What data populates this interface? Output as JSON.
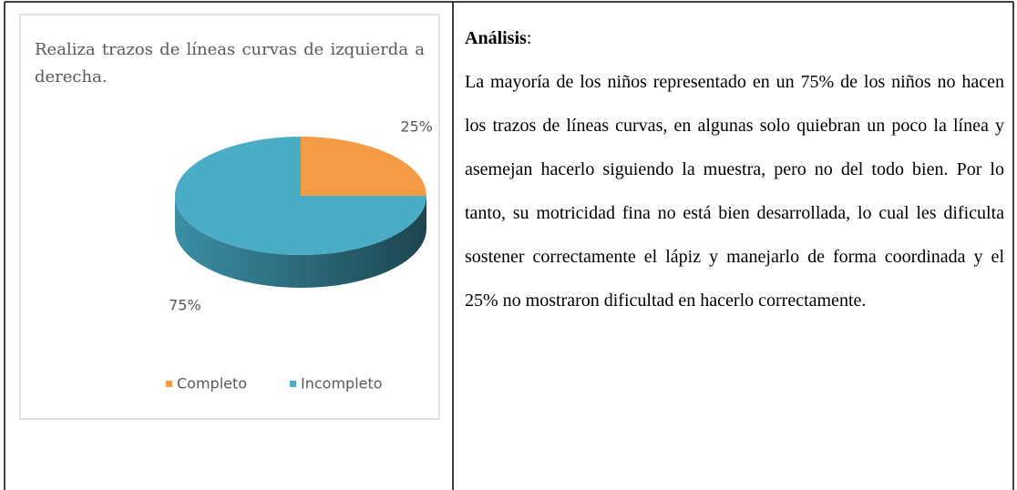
{
  "chart_data": {
    "type": "pie",
    "title": "Realiza trazos de líneas curvas de izquierda a derecha.",
    "categories": [
      "Completo",
      "Incompleto"
    ],
    "values": [
      25,
      75
    ],
    "value_labels": [
      "25%",
      "75%"
    ],
    "colors": [
      "#f59a45",
      "#4aacc5"
    ],
    "legend": "bottom"
  },
  "analysis": {
    "heading": "Análisis",
    "heading_suffix": ":",
    "text": "La mayoría de los niños representado en un 75% de los niños no hacen los trazos de líneas curvas, en algunas solo quiebran un poco la línea y asemejan hacerlo siguiendo la muestra, pero no del todo bien. Por lo tanto, su motricidad fina no está bien desarrollada, lo cual les dificulta sostener correctamente el lápiz y manejarlo de forma coordinada y el 25% no mostraron dificultad en hacerlo correctamente."
  }
}
